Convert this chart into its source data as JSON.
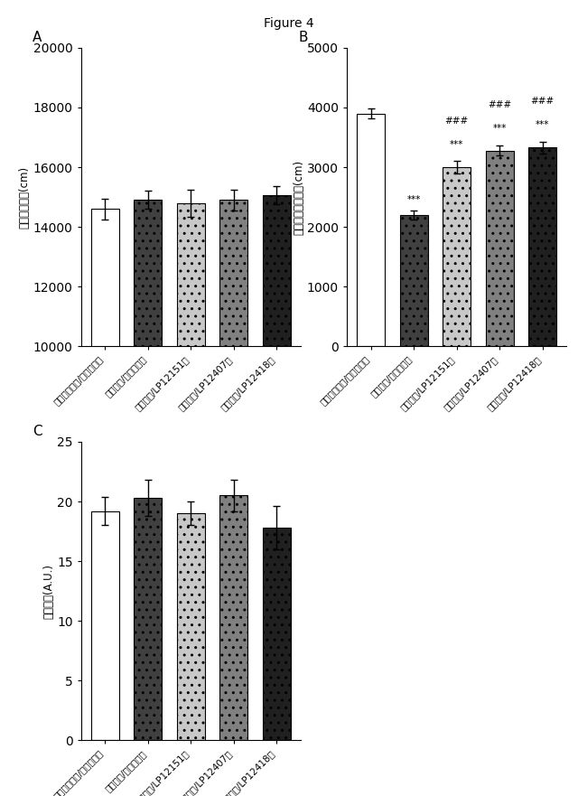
{
  "title": "Figure 4",
  "categories": [
    "ストレス無し/ビヒクル群",
    "ストレス/ビヒクル群",
    "ストレス/LP12151群",
    "ストレス/LP12407群",
    "ストレス/LP12418群"
  ],
  "panel_A": {
    "label": "A",
    "ylabel": "自発運動活性(cm)",
    "ylim": [
      10000,
      20000
    ],
    "yticks": [
      10000,
      12000,
      14000,
      16000,
      18000,
      20000
    ],
    "values": [
      14600,
      14900,
      14800,
      14900,
      15050
    ],
    "errors": [
      350,
      300,
      450,
      350,
      300
    ],
    "bar_colors": [
      "white",
      "#404040",
      "#c8c8c8",
      "#808080",
      "#202020"
    ],
    "bar_edgecolors": [
      "black",
      "black",
      "black",
      "black",
      "black"
    ],
    "hatches": [
      "",
      "..",
      "..",
      "..",
      ".."
    ]
  },
  "panel_B": {
    "label": "B",
    "ylabel": "中心での自発運動(cm)",
    "ylim": [
      0,
      5000
    ],
    "yticks": [
      0,
      1000,
      2000,
      3000,
      4000,
      5000
    ],
    "values": [
      3900,
      2200,
      3000,
      3280,
      3330
    ],
    "errors": [
      80,
      80,
      100,
      90,
      100
    ],
    "bar_colors": [
      "white",
      "#404040",
      "#c8c8c8",
      "#808080",
      "#202020"
    ],
    "bar_edgecolors": [
      "black",
      "black",
      "black",
      "black",
      "black"
    ],
    "hatches": [
      "",
      "..",
      "..",
      "..",
      ".."
    ],
    "sig_stars": [
      "",
      "***",
      "###\n***",
      "###\n***",
      "###\n***"
    ]
  },
  "panel_C": {
    "label": "C",
    "ylabel": "飲同行動(A.U.)",
    "ylim": [
      0,
      25
    ],
    "yticks": [
      0,
      5,
      10,
      15,
      20,
      25
    ],
    "values": [
      19.2,
      20.3,
      19.0,
      20.5,
      17.8
    ],
    "errors": [
      1.2,
      1.5,
      1.0,
      1.3,
      1.8
    ],
    "bar_colors": [
      "white",
      "#404040",
      "#c8c8c8",
      "#808080",
      "#202020"
    ],
    "bar_edgecolors": [
      "black",
      "black",
      "black",
      "black",
      "black"
    ],
    "hatches": [
      "",
      "..",
      "..",
      "..",
      ".."
    ]
  }
}
